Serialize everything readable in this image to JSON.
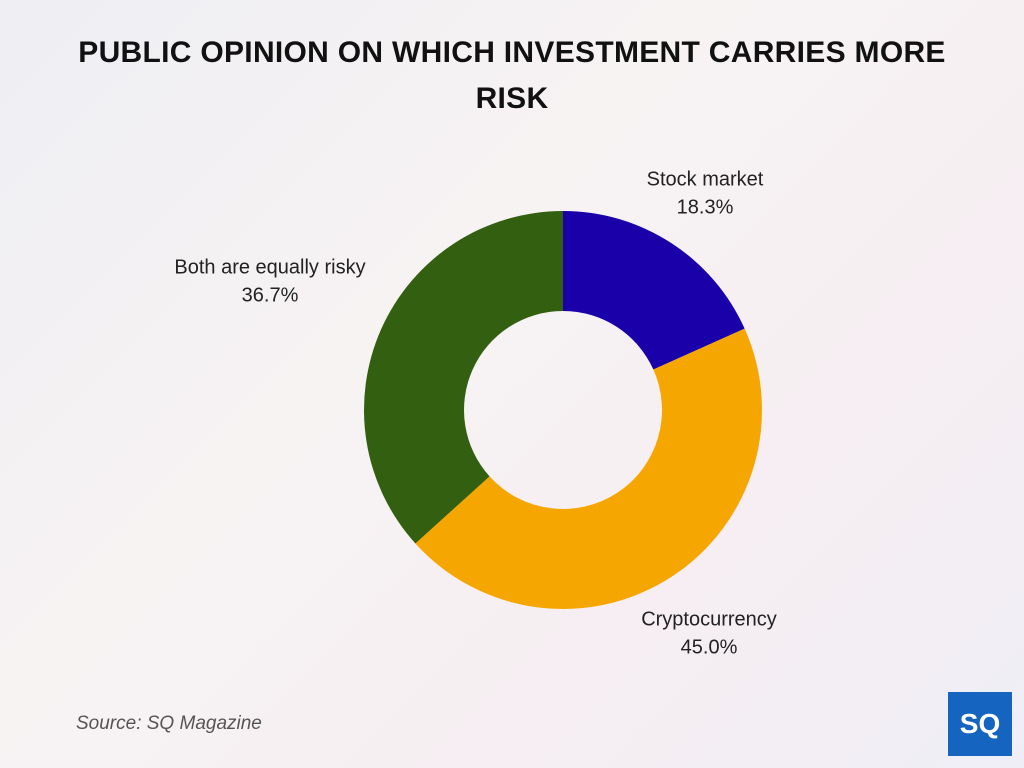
{
  "chart_data": {
    "type": "donut",
    "title": "PUBLIC OPINION ON WHICH INVESTMENT CARRIES MORE RISK",
    "categories": [
      "Stock market",
      "Cryptocurrency",
      "Both are equally risky"
    ],
    "values": [
      18.3,
      45.0,
      36.7
    ],
    "value_labels": [
      "18.3%",
      "45.0%",
      "36.7%"
    ],
    "colors": [
      "#1a00a8",
      "#f6a600",
      "#336010"
    ],
    "source": "Source: SQ Magazine"
  },
  "logo": "SQ"
}
